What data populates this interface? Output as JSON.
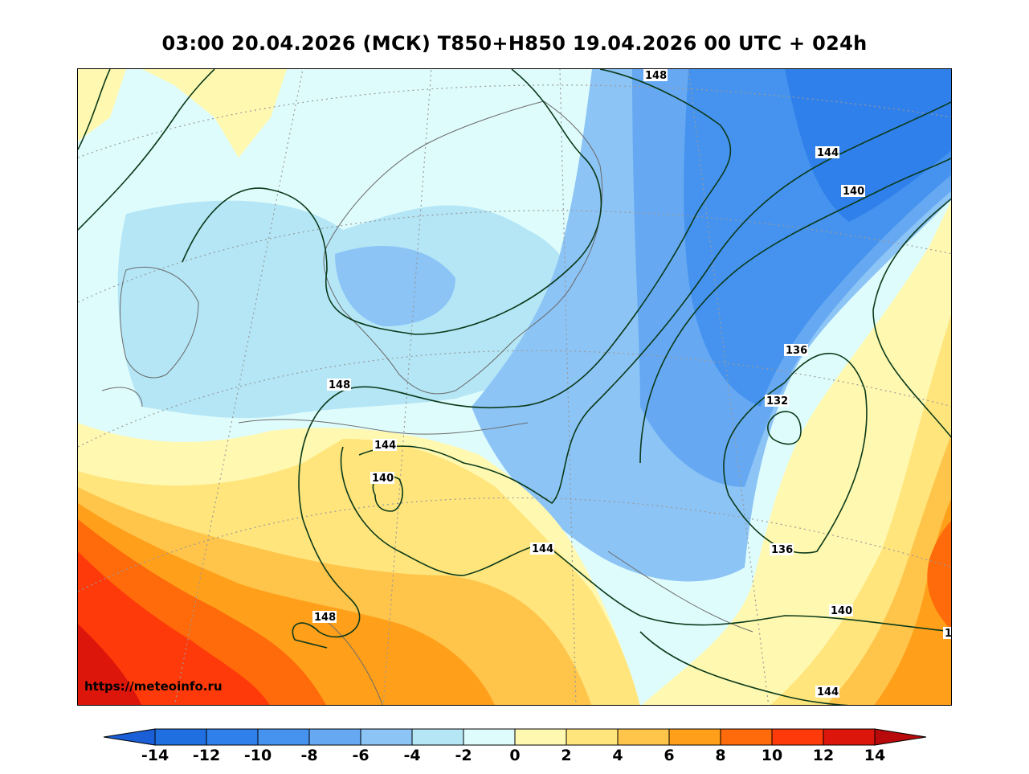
{
  "header": {
    "title": "03:00 20.04.2026 (МСК) T850+H850 19.04.2026 00 UTC + 024h"
  },
  "map": {
    "source_label": "https://meteoinfo.ru",
    "contour_labels": [
      "148",
      "144",
      "140",
      "136",
      "132",
      "136",
      "148",
      "144",
      "140",
      "144",
      "148",
      "140",
      "144",
      "1"
    ]
  },
  "colorbar": {
    "ticks": [
      "-14",
      "-12",
      "-10",
      "-8",
      "-6",
      "-4",
      "-2",
      "0",
      "2",
      "4",
      "6",
      "8",
      "10",
      "12",
      "14"
    ],
    "colors": [
      "#1f6fe0",
      "#2f80ea",
      "#4593ef",
      "#66a9f2",
      "#8cc4f6",
      "#b4e6f6",
      "#dffcfc",
      "#fff8b0",
      "#ffe57c",
      "#ffc44a",
      "#ff9f1a",
      "#ff6a0a",
      "#ff3a0a",
      "#dd160c"
    ],
    "under_color": "#1a5fd8",
    "over_color": "#b80a0a"
  }
}
